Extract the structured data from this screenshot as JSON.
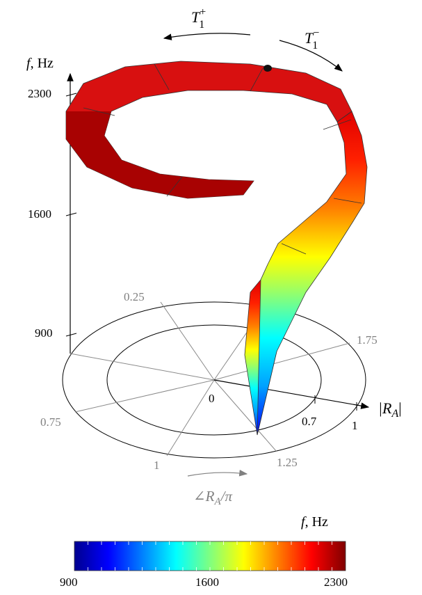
{
  "chart_data": {
    "type": "surface3d",
    "z_axis": {
      "label_var": "f",
      "label_unit": ", Hz",
      "ticks": [
        "900",
        "1600",
        "2300"
      ],
      "range": [
        900,
        2300
      ]
    },
    "radial_axis": {
      "label": "|R",
      "label_sub": "A",
      "label_close": "|",
      "ticks": [
        "0.7",
        "1"
      ],
      "range": [
        0,
        1
      ]
    },
    "angle_axis": {
      "label": "∠R",
      "label_sub": "A",
      "label_tail": "/π",
      "ticks": [
        "0.25",
        "0.75",
        "1",
        "1.25",
        "1.75"
      ]
    },
    "origin_label": "0",
    "arrows": [
      {
        "sym": "T",
        "sub": "1",
        "sup": "+",
        "direction": "counterclockwise"
      },
      {
        "sym": "T",
        "sub": "1",
        "sup": "−",
        "direction": "clockwise"
      }
    ],
    "trajectory": {
      "note_values": "spiral path of reflection coefficient vs frequency",
      "f_start": 900,
      "f_end": 2300
    },
    "colorbar": {
      "label_var": "f",
      "label_unit": ", Hz",
      "ticks": [
        "900",
        "1600",
        "2300"
      ],
      "range": [
        900,
        2300
      ],
      "colormap": "jet"
    }
  }
}
